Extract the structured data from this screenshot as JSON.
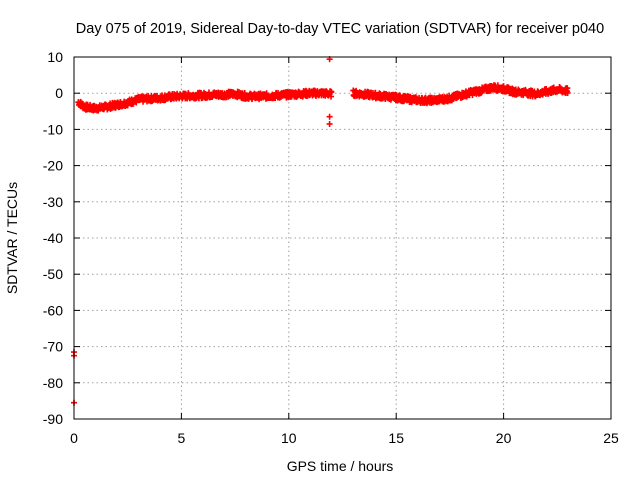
{
  "chart_data": {
    "type": "scatter",
    "title": "Day 075 of 2019, Sidereal Day-to-day VTEC variation (SDTVAR) for receiver p040",
    "xlabel": "GPS time / hours",
    "ylabel": "SDTVAR / TECUs",
    "xlim": [
      0,
      25
    ],
    "ylim": [
      -90,
      10
    ],
    "x_ticks": [
      0,
      5,
      10,
      15,
      20,
      25
    ],
    "y_ticks": [
      10,
      0,
      -10,
      -20,
      -30,
      -40,
      -50,
      -60,
      -70,
      -80,
      -90
    ],
    "grid": true,
    "marker": "plus",
    "series_color": "#ff0000",
    "series": [
      {
        "name": "SDTVAR",
        "trend_x": [
          0.2,
          0.5,
          1.0,
          1.5,
          2.0,
          2.5,
          3.0,
          3.5,
          4.0,
          4.5,
          5.0,
          5.5,
          6.0,
          6.5,
          7.0,
          7.5,
          8.0,
          8.5,
          9.0,
          9.5,
          10.0,
          10.5,
          11.0,
          11.5,
          12.0,
          13.0,
          13.5,
          14.0,
          14.5,
          15.0,
          15.5,
          16.0,
          16.5,
          17.0,
          17.5,
          18.0,
          18.5,
          19.0,
          19.5,
          20.0,
          20.5,
          21.0,
          21.5,
          22.0,
          22.5,
          23.0
        ],
        "trend_y": [
          -2.5,
          -3.8,
          -4.2,
          -3.8,
          -3.2,
          -2.6,
          -1.8,
          -1.5,
          -1.3,
          -1.0,
          -0.8,
          -0.7,
          -0.6,
          -0.4,
          -0.4,
          -0.2,
          -0.8,
          -0.9,
          -0.8,
          -0.6,
          -0.4,
          -0.2,
          0.0,
          0.0,
          -0.2,
          0.0,
          -0.3,
          -0.6,
          -0.9,
          -1.2,
          -1.6,
          -1.9,
          -2.0,
          -1.8,
          -1.4,
          -0.6,
          0.2,
          0.8,
          1.6,
          1.2,
          0.4,
          0.2,
          -0.2,
          0.4,
          1.0,
          0.6
        ],
        "outliers_x": [
          11.9,
          11.9,
          11.9,
          0.0,
          0.0,
          0.0
        ],
        "outliers_y": [
          9.4,
          -6.5,
          -8.5,
          -71.5,
          -72.5,
          -85.5
        ]
      }
    ]
  }
}
